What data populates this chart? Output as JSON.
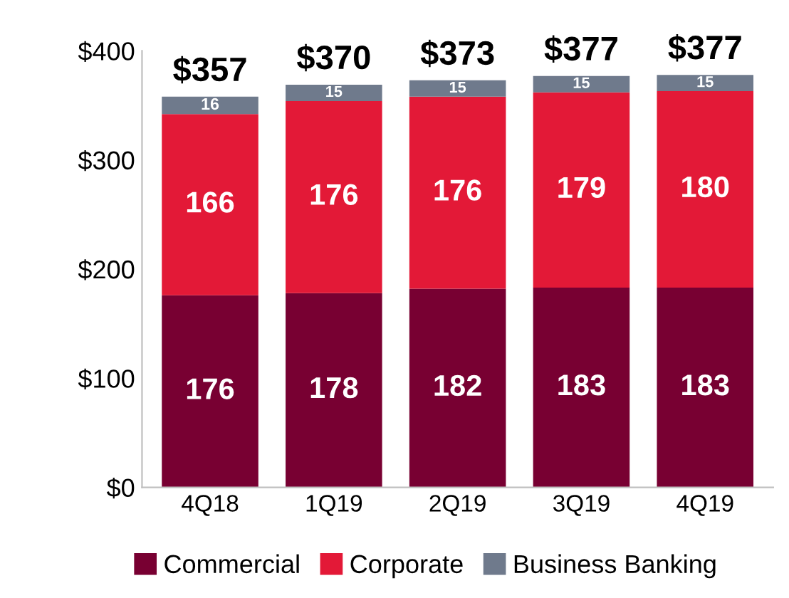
{
  "chart_data": {
    "type": "bar",
    "stacked": true,
    "categories": [
      "4Q18",
      "1Q19",
      "2Q19",
      "3Q19",
      "4Q19"
    ],
    "series": [
      {
        "name": "Commercial",
        "color": "#780032",
        "values": [
          176,
          178,
          182,
          183,
          183
        ]
      },
      {
        "name": "Corporate",
        "color": "#e31937",
        "values": [
          166,
          176,
          176,
          179,
          180
        ]
      },
      {
        "name": "Business Banking",
        "color": "#6f7a8c",
        "values": [
          16,
          15,
          15,
          15,
          15
        ]
      }
    ],
    "ylim": [
      0,
      400
    ],
    "yticks": [
      {
        "value": 0,
        "label": "$0"
      },
      {
        "value": 100,
        "label": "$100"
      },
      {
        "value": 200,
        "label": "$200"
      },
      {
        "value": 300,
        "label": "$300"
      },
      {
        "value": 400,
        "label": "$400"
      }
    ],
    "data_labels": true,
    "totals": [
      "$357",
      "$370",
      "$373",
      "$377",
      "$377"
    ],
    "legend": "bottom",
    "grid": false
  }
}
